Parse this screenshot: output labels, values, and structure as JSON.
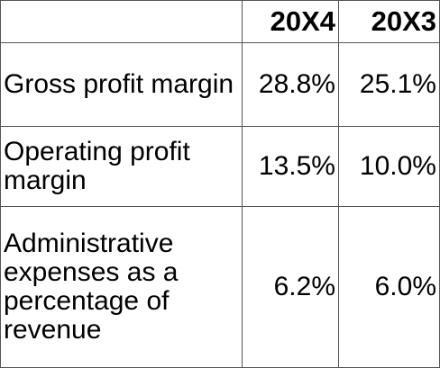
{
  "table": {
    "columns": [
      "20X4",
      "20X3"
    ],
    "rows": [
      [
        "Gross profit margin",
        "28.8%",
        "25.1%"
      ],
      [
        "Operating profit margin",
        "13.5%",
        "10.0%"
      ],
      [
        "Administrative expenses as a percentage of revenue",
        "6.2%",
        "6.0%"
      ]
    ]
  }
}
